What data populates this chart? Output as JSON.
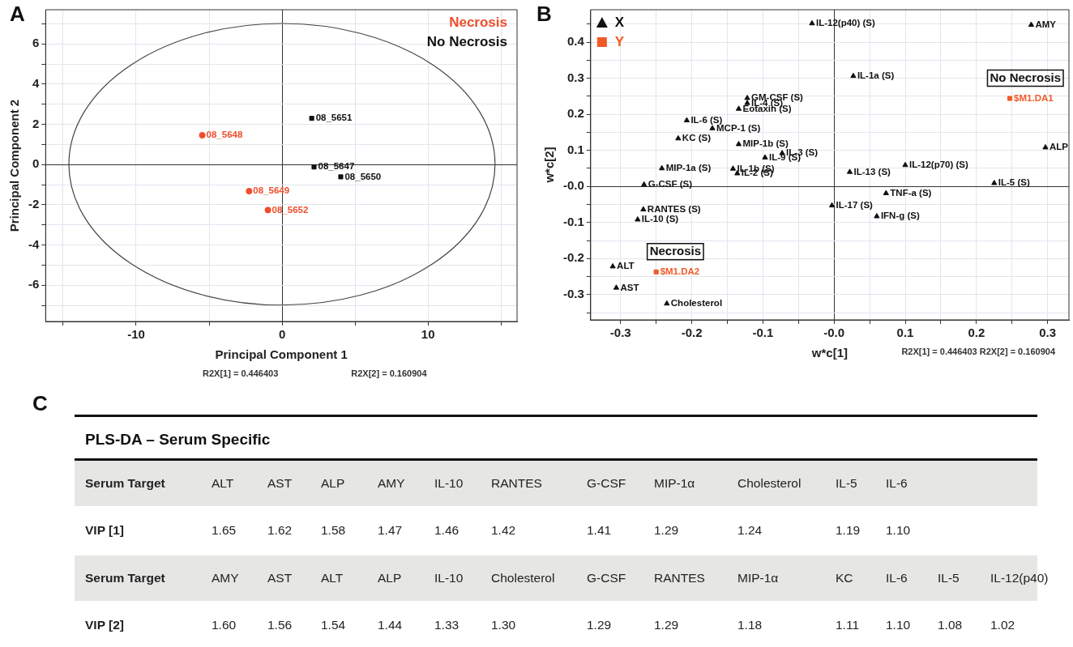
{
  "chart_data": [
    {
      "type": "scatter",
      "title": "A",
      "xlabel": "Principal Component 1",
      "ylabel": "Principal Component 2",
      "xlim": [
        -16.2,
        16.1
      ],
      "ylim": [
        -7.8,
        7.7
      ],
      "xticks": [
        {
          "value": -15,
          "label": null
        },
        -10,
        {
          "value": -5,
          "label": null
        },
        0,
        {
          "value": 5,
          "label": null
        },
        10,
        {
          "value": 15,
          "label": null
        }
      ],
      "yticks": [
        {
          "value": -7,
          "label": null
        },
        -6,
        {
          "value": -5,
          "label": null
        },
        -4,
        {
          "value": -3,
          "label": null
        },
        -2,
        {
          "value": -1,
          "label": null
        },
        0,
        {
          "value": 1,
          "label": null
        },
        2,
        {
          "value": 3,
          "label": null
        },
        4,
        {
          "value": 5,
          "label": null
        },
        6,
        {
          "value": 7,
          "label": null
        }
      ],
      "grid": true,
      "legend": "top right",
      "series": [
        {
          "name": "Necrosis",
          "color": "#ee4e2c",
          "marker": "circle",
          "x": [
            -5.47,
            -2.26,
            -0.97
          ],
          "values": [
            1.46,
            -1.32,
            -2.26
          ]
        },
        {
          "name": "No Necrosis",
          "color": "#111111",
          "marker": "square",
          "x": [
            2.03,
            2.19,
            4.02
          ],
          "values": [
            2.3,
            -0.12,
            -0.61
          ]
        }
      ],
      "annotations": [
        {
          "text": "08_5648",
          "x": -5.47,
          "y": 1.46
        },
        {
          "text": "08_5649",
          "x": -2.26,
          "y": -1.32
        },
        {
          "text": "08_5652",
          "x": -0.97,
          "y": -2.26
        },
        {
          "text": "08_5651",
          "x": 2.03,
          "y": 2.3
        },
        {
          "text": "08_5647",
          "x": 2.19,
          "y": -0.12
        },
        {
          "text": "08_5650",
          "x": 4.02,
          "y": -0.61
        },
        "R2X[1] = 0.446403",
        "R2X[2] = 0.160904"
      ]
    },
    {
      "type": "scatter",
      "title": "B",
      "xlabel": "w*c[1]",
      "ylabel": "w*c[2]",
      "xlim": [
        -0.342,
        0.33
      ],
      "ylim": [
        -0.37,
        0.49
      ],
      "xticks": [
        -0.3,
        {
          "value": -0.25,
          "label": null
        },
        -0.2,
        {
          "value": -0.15,
          "label": null
        },
        -0.1,
        {
          "value": -0.05,
          "label": null
        },
        {
          "value": 0,
          "label": "-0.0"
        },
        {
          "value": 0.05,
          "label": null
        },
        0.1,
        {
          "value": 0.15,
          "label": null
        },
        0.2,
        {
          "value": 0.25,
          "label": null
        },
        0.3
      ],
      "yticks": [
        {
          "value": -0.35,
          "label": null
        },
        -0.3,
        {
          "value": -0.25,
          "label": null
        },
        -0.2,
        {
          "value": -0.15,
          "label": null
        },
        -0.1,
        {
          "value": -0.05,
          "label": null
        },
        {
          "value": 0,
          "label": "-0.0"
        },
        {
          "value": 0.05,
          "label": null
        },
        0.1,
        {
          "value": 0.15,
          "label": null
        },
        0.2,
        {
          "value": 0.25,
          "label": null
        },
        0.3,
        {
          "value": 0.35,
          "label": null
        },
        0.4,
        {
          "value": 0.45,
          "label": null
        }
      ],
      "grid": true,
      "legend": "top left",
      "series": [
        {
          "name": "X",
          "color": "#111111",
          "marker": "triangle",
          "x": [
            -0.122,
            -0.122,
            -0.134,
            -0.207,
            -0.171,
            -0.219,
            -0.134,
            -0.073,
            -0.097,
            -0.242,
            -0.142,
            -0.136,
            -0.267,
            -0.268,
            -0.276,
            -0.311,
            -0.306,
            -0.235,
            -0.031,
            0.277,
            0.027,
            0.297,
            0.1,
            0.022,
            0.225,
            0.073,
            -0.003,
            0.06
          ],
          "values": [
            0.245,
            0.231,
            0.215,
            0.183,
            0.161,
            0.133,
            0.117,
            0.092,
            0.08,
            0.05,
            0.049,
            0.036,
            0.005,
            -0.064,
            -0.092,
            -0.222,
            -0.281,
            -0.325,
            0.452,
            0.448,
            0.306,
            0.108,
            0.059,
            0.04,
            0.009,
            -0.019,
            -0.053,
            -0.083
          ]
        },
        {
          "name": "Y",
          "color": "#f05a28",
          "marker": "square",
          "x": [
            -0.25,
            0.247
          ],
          "values": [
            -0.237,
            0.244
          ]
        }
      ],
      "annotations": [
        {
          "text": "GM-CSF (S)",
          "x": -0.122,
          "y": 0.245
        },
        {
          "text": "IL-4 (S)",
          "x": -0.122,
          "y": 0.231
        },
        {
          "text": "Eotaxin (S)",
          "x": -0.134,
          "y": 0.215
        },
        {
          "text": "IL-6 (S)",
          "x": -0.207,
          "y": 0.183
        },
        {
          "text": "MCP-1 (S)",
          "x": -0.171,
          "y": 0.161
        },
        {
          "text": "KC (S)",
          "x": -0.219,
          "y": 0.133
        },
        {
          "text": "MIP-1b (S)",
          "x": -0.134,
          "y": 0.117
        },
        {
          "text": "IL-3 (S)",
          "x": -0.073,
          "y": 0.092
        },
        {
          "text": "IL-9 (S)",
          "x": -0.097,
          "y": 0.08
        },
        {
          "text": "MIP-1a (S)",
          "x": -0.242,
          "y": 0.05
        },
        {
          "text": "IL-1b (S)",
          "x": -0.142,
          "y": 0.049
        },
        {
          "text": "IL-2 (S)",
          "x": -0.136,
          "y": 0.036
        },
        {
          "text": "G-CSF (S)",
          "x": -0.267,
          "y": 0.005
        },
        {
          "text": "RANTES (S)",
          "x": -0.268,
          "y": -0.064
        },
        {
          "text": "IL-10 (S)",
          "x": -0.276,
          "y": -0.092
        },
        {
          "text": "ALT",
          "x": -0.311,
          "y": -0.222
        },
        {
          "text": "AST",
          "x": -0.306,
          "y": -0.281
        },
        {
          "text": "Cholesterol",
          "x": -0.235,
          "y": -0.325
        },
        {
          "text": "IL-12(p40) (S)",
          "x": -0.031,
          "y": 0.452
        },
        {
          "text": "AMY",
          "x": 0.277,
          "y": 0.448
        },
        {
          "text": "IL-1a (S)",
          "x": 0.027,
          "y": 0.306
        },
        {
          "text": "ALP",
          "x": 0.297,
          "y": 0.108
        },
        {
          "text": "IL-12(p70) (S)",
          "x": 0.1,
          "y": 0.059
        },
        {
          "text": "IL-13 (S)",
          "x": 0.022,
          "y": 0.04
        },
        {
          "text": "IL-5 (S)",
          "x": 0.225,
          "y": 0.009
        },
        {
          "text": "TNF-a (S)",
          "x": 0.073,
          "y": -0.019
        },
        {
          "text": "IL-17 (S)",
          "x": -0.003,
          "y": -0.053
        },
        {
          "text": "IFN-g (S)",
          "x": 0.06,
          "y": -0.083
        },
        {
          "text": "$M1.DA2",
          "x": -0.25,
          "y": -0.237
        },
        {
          "text": "$M1.DA1",
          "x": 0.247,
          "y": 0.244
        },
        {
          "text": "Necrosis",
          "x": -0.25,
          "y": -0.237
        },
        {
          "text": "No Necrosis",
          "x": 0.247,
          "y": 0.244
        },
        "R2X[1] = 0.446403 R2X[2] = 0.160904"
      ]
    },
    {
      "type": "other",
      "title": "C",
      "subtitle": "PLS-DA – Serum Specific",
      "xlabel": "Serum Target",
      "categories": [
        "ALT",
        "AST",
        "ALP",
        "AMY",
        "IL-10",
        "RANTES",
        "G-CSF",
        "MIP-1α",
        "Cholesterol",
        "IL-5",
        "IL-6"
      ],
      "series": [
        {
          "name": "VIP [1]",
          "values": [
            1.65,
            1.62,
            1.58,
            1.47,
            1.46,
            1.42,
            1.41,
            1.29,
            1.24,
            1.19,
            1.1
          ],
          "value_labels": [
            "1.65",
            "1.62",
            "1.58",
            "1.47",
            "1.46",
            "1.42",
            "1.41",
            "1.29",
            "1.24",
            "1.19",
            "1.10"
          ]
        }
      ]
    },
    {
      "type": "other",
      "xlabel": "Serum Target",
      "categories": [
        "AMY",
        "AST",
        "ALT",
        "ALP",
        "IL-10",
        "Cholesterol",
        "G-CSF",
        "RANTES",
        "MIP-1α",
        "KC",
        "IL-6",
        "IL-5",
        "IL-12(p40)"
      ],
      "series": [
        {
          "name": "VIP [2]",
          "values": [
            1.6,
            1.56,
            1.54,
            1.44,
            1.33,
            1.3,
            1.29,
            1.29,
            1.18,
            1.11,
            1.1,
            1.08,
            1.02
          ],
          "value_labels": [
            "1.60",
            "1.56",
            "1.54",
            "1.44",
            "1.33",
            "1.30",
            "1.29",
            "1.29",
            "1.18",
            "1.11",
            "1.10",
            "1.08",
            "1.02"
          ]
        }
      ]
    }
  ]
}
